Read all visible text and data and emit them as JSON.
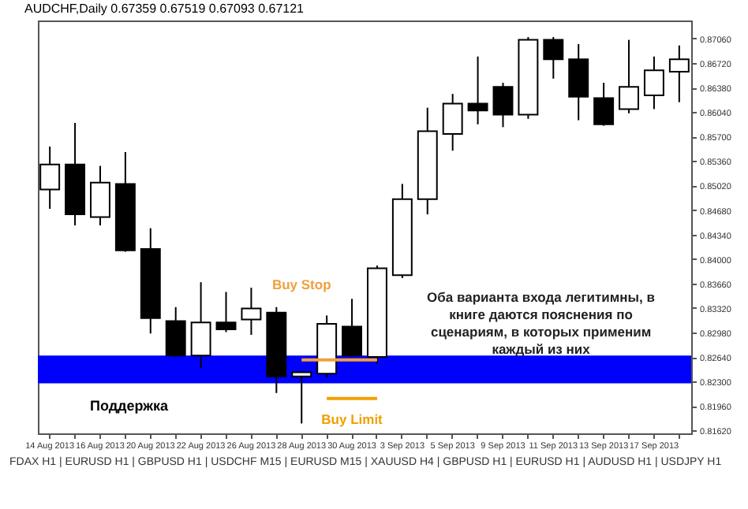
{
  "chart_data": {
    "type": "candlestick",
    "title": "AUDCHF,Daily  0.67359 0.67519 0.67093 0.67121",
    "categories": [
      "14 Aug 2013",
      null,
      "16 Aug 2013",
      null,
      "20 Aug 2013",
      null,
      "22 Aug 2013",
      null,
      "26 Aug 2013",
      null,
      "28 Aug 2013",
      null,
      "30 Aug 2013",
      null,
      "3 Sep 2013",
      null,
      "5 Sep 2013",
      null,
      "9 Sep 2013",
      null,
      "11 Sep 2013",
      null,
      "13 Sep 2013",
      null,
      "17 Sep 2013",
      null
    ],
    "ohlc": [
      [
        0.84965,
        0.85561,
        0.84696,
        0.85311
      ],
      [
        0.85311,
        0.85888,
        0.84466,
        0.84619
      ],
      [
        0.84581,
        0.85292,
        0.84466,
        0.85061
      ],
      [
        0.85042,
        0.85484,
        0.841,
        0.8412
      ],
      [
        0.84139,
        0.84427,
        0.82966,
        0.83178
      ],
      [
        0.83139,
        0.83332,
        0.8264,
        0.82659
      ],
      [
        0.82659,
        0.83678,
        0.82486,
        0.8312
      ],
      [
        0.8312,
        0.83543,
        0.82985,
        0.83024
      ],
      [
        0.83159,
        0.83601,
        0.82947,
        0.83312
      ],
      [
        0.83255,
        0.83332,
        0.8214,
        0.82371
      ],
      [
        0.82371,
        0.82447,
        0.81717,
        0.82428
      ],
      [
        0.82409,
        0.83216,
        0.82351,
        0.83101
      ],
      [
        0.83063,
        0.83447,
        0.8264,
        0.82659
      ],
      [
        0.8264,
        0.83909,
        0.82544,
        0.8387
      ],
      [
        0.83774,
        0.85042,
        0.83735,
        0.84831
      ],
      [
        0.84831,
        0.86099,
        0.84619,
        0.85773
      ],
      [
        0.85734,
        0.86291,
        0.85503,
        0.86157
      ],
      [
        0.86157,
        0.8681,
        0.85869,
        0.86061
      ],
      [
        0.86388,
        0.86445,
        0.8583,
        0.86003
      ],
      [
        0.86003,
        0.8708,
        0.85945,
        0.87041
      ],
      [
        0.87041,
        0.8708,
        0.86503,
        0.86772
      ],
      [
        0.86772,
        0.86983,
        0.85926,
        0.86253
      ],
      [
        0.86234,
        0.86445,
        0.85849,
        0.85869
      ],
      [
        0.8608,
        0.87041,
        0.86022,
        0.86388
      ],
      [
        0.86272,
        0.8681,
        0.8608,
        0.86619
      ],
      [
        0.86599,
        0.86964,
        0.86176,
        0.86772
      ]
    ],
    "colors": [
      "#ffffff",
      "#000000",
      "#ffffff",
      "#000000",
      "#000000",
      "#000000",
      "#ffffff",
      "#000000",
      "#ffffff",
      "#000000",
      "#ffffff",
      "#ffffff",
      "#000000",
      "#ffffff",
      "#ffffff",
      "#ffffff",
      "#ffffff",
      "#000000",
      "#000000",
      "#ffffff",
      "#000000",
      "#000000",
      "#000000",
      "#ffffff",
      "#ffffff",
      "#ffffff"
    ],
    "series": [
      {
        "name": "Buy Stop",
        "type": "line",
        "color": "#f0a040",
        "values": [
          null,
          null,
          null,
          null,
          null,
          null,
          null,
          null,
          null,
          null,
          0.82601,
          0.82601,
          0.82601,
          0.82601,
          null,
          null,
          null,
          null,
          null,
          null,
          null,
          null,
          null,
          null,
          null,
          null
        ]
      },
      {
        "name": "Buy Limit",
        "type": "line",
        "color": "#f0a000",
        "values": [
          null,
          null,
          null,
          null,
          null,
          null,
          null,
          null,
          null,
          null,
          null,
          0.82063,
          0.82063,
          0.82063,
          null,
          null,
          null,
          null,
          null,
          null,
          null,
          null,
          null,
          null,
          null,
          null
        ]
      }
    ],
    "bands": [
      {
        "axis": "y",
        "from": 0.82274,
        "to": 0.82659,
        "label": "Поддержка",
        "color": "#0000ff"
      }
    ],
    "annotations": [
      "Оба варианта входа легитимны, в книге даются пояснения по сценариям, в которых применим каждый из них",
      "FDAX H1 | EURUSD H1 | GBPUSD H1 | USDCHF M15 | EURUSD M15 | XAUUSD H4 | GBPUSD H1 | EURUSD H1 | AUDUSD H1 | USDJPY H1"
    ],
    "ylim": [
      0.8158,
      0.8731
    ],
    "yticks": [
      {
        "value": 0.8162,
        "label": "0.81620"
      },
      {
        "value": 0.8196,
        "label": "0.81960"
      },
      {
        "value": 0.823,
        "label": "0.82300"
      },
      {
        "value": 0.8264,
        "label": "0.82640"
      },
      {
        "value": 0.8298,
        "label": "0.82980"
      },
      {
        "value": 0.8332,
        "label": "0.83320"
      },
      {
        "value": 0.8366,
        "label": "0.83660"
      },
      {
        "value": 0.84,
        "label": "0.84000"
      },
      {
        "value": 0.8434,
        "label": "0.84340"
      },
      {
        "value": 0.8468,
        "label": "0.84680"
      },
      {
        "value": 0.8502,
        "label": "0.85020"
      },
      {
        "value": 0.8536,
        "label": "0.85360"
      },
      {
        "value": 0.857,
        "label": "0.85700"
      },
      {
        "value": 0.8604,
        "label": "0.86040"
      },
      {
        "value": 0.8638,
        "label": "0.86380"
      },
      {
        "value": 0.8672,
        "label": "0.86720"
      },
      {
        "value": 0.8706,
        "label": "0.87060"
      }
    ]
  }
}
